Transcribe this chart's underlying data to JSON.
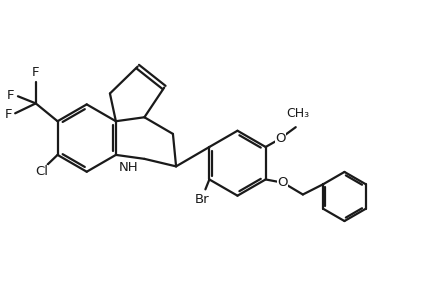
{
  "bg_color": "#ffffff",
  "line_color": "#1a1a1a",
  "line_width": 1.6,
  "font_size": 9.5,
  "figsize": [
    4.23,
    2.88
  ],
  "dpi": 100,
  "xlim": [
    0,
    10.5
  ],
  "ylim": [
    0,
    7.2
  ]
}
